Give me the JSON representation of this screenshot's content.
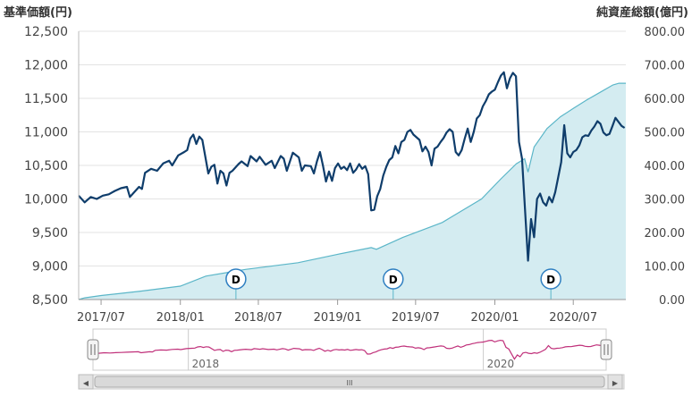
{
  "chart_data": {
    "type": "line",
    "left_axis_title": "基準価額(円)",
    "right_axis_title": "純資産総額(億円)",
    "left_ylim": [
      8500,
      12500
    ],
    "left_ticks": [
      "12,500",
      "12,000",
      "11,500",
      "11,000",
      "10,500",
      "10,000",
      "9,500",
      "9,000",
      "8,500"
    ],
    "right_ylim": [
      0,
      800
    ],
    "right_ticks": [
      "800.00",
      "700.00",
      "600.00",
      "500.00",
      "400.00",
      "300.00",
      "200.00",
      "100.00",
      "0.00"
    ],
    "x_range": [
      "2017-05-10",
      "2020-10-31"
    ],
    "x_ticks": [
      {
        "label": "2017/07",
        "date": "2017-07-01"
      },
      {
        "label": "2018/01",
        "date": "2018-01-01"
      },
      {
        "label": "2018/07",
        "date": "2018-07-01"
      },
      {
        "label": "2019/01",
        "date": "2019-01-01"
      },
      {
        "label": "2019/07",
        "date": "2019-07-01"
      },
      {
        "label": "2020/01",
        "date": "2020-01-01"
      },
      {
        "label": "2020/07",
        "date": "2020-07-01"
      }
    ],
    "grid": true,
    "series": [
      {
        "axis": "left",
        "color": "#0f3d6b",
        "points": [
          [
            "2017-05-10",
            10050
          ],
          [
            "2017-05-24",
            9950
          ],
          [
            "2017-06-07",
            10030
          ],
          [
            "2017-06-21",
            10000
          ],
          [
            "2017-07-05",
            10050
          ],
          [
            "2017-07-19",
            10070
          ],
          [
            "2017-08-02",
            10120
          ],
          [
            "2017-08-16",
            10160
          ],
          [
            "2017-08-30",
            10180
          ],
          [
            "2017-09-06",
            10030
          ],
          [
            "2017-09-13",
            10080
          ],
          [
            "2017-09-27",
            10180
          ],
          [
            "2017-10-04",
            10150
          ],
          [
            "2017-10-11",
            10390
          ],
          [
            "2017-10-25",
            10450
          ],
          [
            "2017-11-08",
            10420
          ],
          [
            "2017-11-22",
            10530
          ],
          [
            "2017-12-06",
            10570
          ],
          [
            "2017-12-13",
            10500
          ],
          [
            "2017-12-27",
            10650
          ],
          [
            "2018-01-10",
            10700
          ],
          [
            "2018-01-17",
            10730
          ],
          [
            "2018-01-24",
            10900
          ],
          [
            "2018-01-31",
            10960
          ],
          [
            "2018-02-07",
            10820
          ],
          [
            "2018-02-14",
            10930
          ],
          [
            "2018-02-21",
            10880
          ],
          [
            "2018-03-07",
            10380
          ],
          [
            "2018-03-14",
            10480
          ],
          [
            "2018-03-21",
            10510
          ],
          [
            "2018-03-28",
            10230
          ],
          [
            "2018-04-04",
            10420
          ],
          [
            "2018-04-11",
            10380
          ],
          [
            "2018-04-18",
            10200
          ],
          [
            "2018-04-25",
            10390
          ],
          [
            "2018-05-02",
            10420
          ],
          [
            "2018-05-16",
            10520
          ],
          [
            "2018-05-23",
            10560
          ],
          [
            "2018-06-06",
            10490
          ],
          [
            "2018-06-13",
            10640
          ],
          [
            "2018-06-27",
            10560
          ],
          [
            "2018-07-04",
            10630
          ],
          [
            "2018-07-18",
            10510
          ],
          [
            "2018-08-01",
            10570
          ],
          [
            "2018-08-08",
            10460
          ],
          [
            "2018-08-22",
            10640
          ],
          [
            "2018-08-29",
            10600
          ],
          [
            "2018-09-05",
            10420
          ],
          [
            "2018-09-19",
            10690
          ],
          [
            "2018-10-03",
            10620
          ],
          [
            "2018-10-10",
            10420
          ],
          [
            "2018-10-17",
            10500
          ],
          [
            "2018-10-31",
            10490
          ],
          [
            "2018-11-07",
            10380
          ],
          [
            "2018-11-14",
            10560
          ],
          [
            "2018-11-21",
            10700
          ],
          [
            "2018-11-28",
            10500
          ],
          [
            "2018-12-05",
            10260
          ],
          [
            "2018-12-12",
            10410
          ],
          [
            "2018-12-19",
            10270
          ],
          [
            "2018-12-26",
            10460
          ],
          [
            "2019-01-02",
            10530
          ],
          [
            "2019-01-09",
            10450
          ],
          [
            "2019-01-16",
            10480
          ],
          [
            "2019-01-23",
            10430
          ],
          [
            "2019-01-30",
            10530
          ],
          [
            "2019-02-06",
            10390
          ],
          [
            "2019-02-13",
            10440
          ],
          [
            "2019-02-20",
            10520
          ],
          [
            "2019-02-27",
            10450
          ],
          [
            "2019-03-06",
            10490
          ],
          [
            "2019-03-13",
            10370
          ],
          [
            "2019-03-20",
            9830
          ],
          [
            "2019-03-27",
            9840
          ],
          [
            "2019-04-03",
            10040
          ],
          [
            "2019-04-10",
            10150
          ],
          [
            "2019-04-17",
            10350
          ],
          [
            "2019-04-24",
            10480
          ],
          [
            "2019-05-01",
            10580
          ],
          [
            "2019-05-08",
            10620
          ],
          [
            "2019-05-15",
            10790
          ],
          [
            "2019-05-22",
            10680
          ],
          [
            "2019-05-29",
            10850
          ],
          [
            "2019-06-05",
            10880
          ],
          [
            "2019-06-12",
            11000
          ],
          [
            "2019-06-19",
            11030
          ],
          [
            "2019-06-26",
            10960
          ],
          [
            "2019-07-03",
            10920
          ],
          [
            "2019-07-10",
            10880
          ],
          [
            "2019-07-17",
            10710
          ],
          [
            "2019-07-24",
            10780
          ],
          [
            "2019-07-31",
            10700
          ],
          [
            "2019-08-07",
            10500
          ],
          [
            "2019-08-14",
            10750
          ],
          [
            "2019-08-21",
            10780
          ],
          [
            "2019-08-28",
            10850
          ],
          [
            "2019-09-04",
            10910
          ],
          [
            "2019-09-11",
            10990
          ],
          [
            "2019-09-18",
            11040
          ],
          [
            "2019-09-25",
            11000
          ],
          [
            "2019-10-02",
            10700
          ],
          [
            "2019-10-09",
            10650
          ],
          [
            "2019-10-16",
            10730
          ],
          [
            "2019-10-23",
            10900
          ],
          [
            "2019-10-30",
            11050
          ],
          [
            "2019-11-06",
            10850
          ],
          [
            "2019-11-13",
            11000
          ],
          [
            "2019-11-20",
            11200
          ],
          [
            "2019-11-27",
            11250
          ],
          [
            "2019-12-04",
            11380
          ],
          [
            "2019-12-11",
            11460
          ],
          [
            "2019-12-18",
            11560
          ],
          [
            "2019-12-25",
            11600
          ],
          [
            "2020-01-01",
            11630
          ],
          [
            "2020-01-08",
            11740
          ],
          [
            "2020-01-15",
            11840
          ],
          [
            "2020-01-22",
            11890
          ],
          [
            "2020-01-29",
            11650
          ],
          [
            "2020-02-05",
            11800
          ],
          [
            "2020-02-12",
            11880
          ],
          [
            "2020-02-19",
            11830
          ],
          [
            "2020-02-26",
            10850
          ],
          [
            "2020-03-04",
            10600
          ],
          [
            "2020-03-11",
            9850
          ],
          [
            "2020-03-18",
            9080
          ],
          [
            "2020-03-25",
            9700
          ],
          [
            "2020-04-01",
            9430
          ],
          [
            "2020-04-08",
            10000
          ],
          [
            "2020-04-15",
            10080
          ],
          [
            "2020-04-22",
            9950
          ],
          [
            "2020-04-29",
            9900
          ],
          [
            "2020-05-06",
            10030
          ],
          [
            "2020-05-13",
            9950
          ],
          [
            "2020-05-20",
            10100
          ],
          [
            "2020-05-27",
            10320
          ],
          [
            "2020-06-03",
            10550
          ],
          [
            "2020-06-10",
            11100
          ],
          [
            "2020-06-17",
            10680
          ],
          [
            "2020-06-24",
            10620
          ],
          [
            "2020-07-01",
            10700
          ],
          [
            "2020-07-08",
            10730
          ],
          [
            "2020-07-15",
            10800
          ],
          [
            "2020-07-22",
            10920
          ],
          [
            "2020-07-29",
            10950
          ],
          [
            "2020-08-05",
            10940
          ],
          [
            "2020-08-12",
            11020
          ],
          [
            "2020-08-19",
            11080
          ],
          [
            "2020-08-26",
            11160
          ],
          [
            "2020-09-02",
            11120
          ],
          [
            "2020-09-09",
            10990
          ],
          [
            "2020-09-16",
            10950
          ],
          [
            "2020-09-23",
            10970
          ],
          [
            "2020-09-30",
            11090
          ],
          [
            "2020-10-07",
            11210
          ],
          [
            "2020-10-14",
            11150
          ],
          [
            "2020-10-21",
            11090
          ],
          [
            "2020-10-28",
            11060
          ]
        ]
      },
      {
        "axis": "right",
        "style": "area",
        "color": "#5bb6c8",
        "fill": "#d4ecf1",
        "points": [
          [
            "2017-05-10",
            0
          ],
          [
            "2017-05-24",
            5
          ],
          [
            "2017-07-01",
            12
          ],
          [
            "2017-10-01",
            25
          ],
          [
            "2018-01-01",
            40
          ],
          [
            "2018-03-01",
            70
          ],
          [
            "2018-06-01",
            90
          ],
          [
            "2018-10-01",
            110
          ],
          [
            "2019-01-01",
            135
          ],
          [
            "2019-03-20",
            155
          ],
          [
            "2019-04-01",
            150
          ],
          [
            "2019-06-01",
            185
          ],
          [
            "2019-09-01",
            230
          ],
          [
            "2019-12-01",
            300
          ],
          [
            "2020-01-15",
            360
          ],
          [
            "2020-02-20",
            405
          ],
          [
            "2020-03-10",
            420
          ],
          [
            "2020-03-18",
            380
          ],
          [
            "2020-04-01",
            455
          ],
          [
            "2020-05-01",
            510
          ],
          [
            "2020-06-01",
            545
          ],
          [
            "2020-07-01",
            570
          ],
          [
            "2020-08-01",
            595
          ],
          [
            "2020-09-01",
            618
          ],
          [
            "2020-10-01",
            640
          ],
          [
            "2020-10-15",
            645
          ],
          [
            "2020-10-31",
            645
          ]
        ]
      }
    ],
    "dividend_markers": [
      {
        "label": "D",
        "date": "2018-05-10"
      },
      {
        "label": "D",
        "date": "2019-05-10"
      },
      {
        "label": "D",
        "date": "2020-05-10"
      }
    ],
    "navigator": {
      "labels": [
        {
          "text": "2018",
          "date": "2018-01-01"
        },
        {
          "text": "2020",
          "date": "2020-01-01"
        }
      ],
      "line_color": "#c0307a",
      "handle_left": "||",
      "handle_right": "||",
      "scrollbar": {
        "left_arrow": "◀",
        "right_arrow": "▶",
        "grip": "III"
      }
    }
  }
}
